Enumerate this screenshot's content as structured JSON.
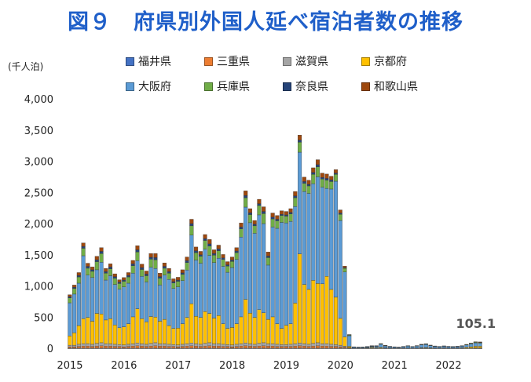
{
  "title": "図９　府県別外国人延べ宿泊者数の推移",
  "chart_data": {
    "type": "bar",
    "stacked": true,
    "unit_label": "(千人泊)",
    "ylim": [
      0,
      4000
    ],
    "yticks": [
      "0",
      "500",
      "1,000",
      "1,500",
      "2,000",
      "2,500",
      "3,000",
      "3,500",
      "4,000"
    ],
    "xticks": [
      "2015",
      "2016",
      "2017",
      "2018",
      "2019",
      "2020",
      "2021",
      "2022"
    ],
    "annotation": "105.1",
    "legend": [
      {
        "name": "福井県",
        "color": "#4472c4"
      },
      {
        "name": "三重県",
        "color": "#ed7d31"
      },
      {
        "name": "滋賀県",
        "color": "#a5a5a5"
      },
      {
        "name": "京都府",
        "color": "#ffc000"
      },
      {
        "name": "大阪府",
        "color": "#5b9bd5"
      },
      {
        "name": "兵庫県",
        "color": "#70ad47"
      },
      {
        "name": "奈良県",
        "color": "#264478"
      },
      {
        "name": "和歌山県",
        "color": "#9e480e"
      }
    ],
    "categories": [
      "2015-01",
      "2015-02",
      "2015-03",
      "2015-04",
      "2015-05",
      "2015-06",
      "2015-07",
      "2015-08",
      "2015-09",
      "2015-10",
      "2015-11",
      "2015-12",
      "2016-01",
      "2016-02",
      "2016-03",
      "2016-04",
      "2016-05",
      "2016-06",
      "2016-07",
      "2016-08",
      "2016-09",
      "2016-10",
      "2016-11",
      "2016-12",
      "2017-01",
      "2017-02",
      "2017-03",
      "2017-04",
      "2017-05",
      "2017-06",
      "2017-07",
      "2017-08",
      "2017-09",
      "2017-10",
      "2017-11",
      "2017-12",
      "2018-01",
      "2018-02",
      "2018-03",
      "2018-04",
      "2018-05",
      "2018-06",
      "2018-07",
      "2018-08",
      "2018-09",
      "2018-10",
      "2018-11",
      "2018-12",
      "2019-01",
      "2019-02",
      "2019-03",
      "2019-04",
      "2019-05",
      "2019-06",
      "2019-07",
      "2019-08",
      "2019-09",
      "2019-10",
      "2019-11",
      "2019-12",
      "2020-01",
      "2020-02",
      "2020-03",
      "2020-04",
      "2020-05",
      "2020-06",
      "2020-07",
      "2020-08",
      "2020-09",
      "2020-10",
      "2020-11",
      "2020-12",
      "2021-01",
      "2021-02",
      "2021-03",
      "2021-04",
      "2021-05",
      "2021-06",
      "2021-07",
      "2021-08",
      "2021-09",
      "2021-10",
      "2021-11",
      "2021-12",
      "2022-01",
      "2022-02",
      "2022-03",
      "2022-04",
      "2022-05",
      "2022-06",
      "2022-07",
      "2022-08"
    ],
    "series": [
      {
        "name": "福井県",
        "values": [
          4,
          4,
          4,
          4,
          4,
          4,
          4,
          4,
          4,
          4,
          4,
          4,
          4,
          4,
          4,
          4,
          4,
          4,
          4,
          4,
          4,
          4,
          4,
          4,
          4,
          4,
          4,
          4,
          4,
          4,
          4,
          4,
          4,
          4,
          4,
          4,
          4,
          4,
          4,
          4,
          4,
          4,
          4,
          4,
          4,
          4,
          4,
          4,
          4,
          4,
          4,
          4,
          4,
          4,
          4,
          4,
          4,
          4,
          4,
          4,
          4,
          3,
          1,
          0,
          0,
          0,
          0,
          0,
          0,
          0,
          0,
          0,
          0,
          0,
          0,
          0,
          0,
          0,
          0,
          0,
          0,
          0,
          0,
          0,
          0,
          0,
          0,
          0,
          0,
          0,
          1,
          1
        ]
      },
      {
        "name": "三重県",
        "values": [
          20,
          20,
          25,
          30,
          30,
          25,
          30,
          35,
          30,
          30,
          25,
          25,
          20,
          25,
          30,
          35,
          30,
          25,
          30,
          35,
          30,
          30,
          25,
          25,
          20,
          25,
          30,
          35,
          30,
          25,
          30,
          35,
          30,
          30,
          25,
          25,
          20,
          25,
          30,
          35,
          30,
          25,
          30,
          35,
          30,
          30,
          25,
          25,
          25,
          25,
          30,
          35,
          30,
          25,
          30,
          35,
          30,
          30,
          25,
          25,
          20,
          15,
          5,
          1,
          1,
          1,
          2,
          3,
          2,
          2,
          1,
          1,
          1,
          1,
          1,
          1,
          1,
          1,
          1,
          1,
          1,
          1,
          1,
          1,
          1,
          1,
          1,
          1,
          1,
          2,
          3,
          3
        ]
      },
      {
        "name": "滋賀県",
        "values": [
          25,
          25,
          35,
          40,
          40,
          35,
          45,
          50,
          40,
          40,
          35,
          30,
          30,
          35,
          40,
          45,
          40,
          35,
          45,
          50,
          40,
          40,
          35,
          30,
          30,
          35,
          40,
          45,
          40,
          35,
          45,
          50,
          40,
          40,
          35,
          30,
          30,
          35,
          40,
          45,
          40,
          35,
          45,
          50,
          40,
          40,
          35,
          30,
          30,
          35,
          40,
          45,
          40,
          35,
          45,
          50,
          40,
          40,
          35,
          30,
          25,
          15,
          5,
          1,
          1,
          1,
          2,
          3,
          2,
          2,
          1,
          1,
          1,
          1,
          1,
          1,
          1,
          1,
          1,
          1,
          1,
          1,
          1,
          1,
          1,
          1,
          1,
          1,
          1,
          2,
          3,
          3
        ]
      },
      {
        "name": "京都府",
        "values": [
          150,
          200,
          300,
          400,
          420,
          370,
          480,
          460,
          380,
          400,
          310,
          270,
          290,
          330,
          430,
          550,
          400,
          360,
          430,
          410,
          360,
          390,
          300,
          260,
          270,
          330,
          420,
          630,
          440,
          430,
          510,
          470,
          410,
          450,
          330,
          260,
          280,
          330,
          430,
          700,
          490,
          430,
          540,
          480,
          390,
          430,
          330,
          260,
          310,
          330,
          650,
          1430,
          950,
          880,
          1010,
          950,
          960,
          1080,
          880,
          760,
          430,
          150,
          20,
          2,
          2,
          3,
          5,
          10,
          8,
          10,
          5,
          3,
          2,
          2,
          3,
          3,
          2,
          4,
          8,
          10,
          6,
          4,
          3,
          5,
          4,
          3,
          4,
          6,
          15,
          20,
          25,
          25
        ]
      },
      {
        "name": "大阪府",
        "values": [
          530,
          620,
          680,
          1010,
          680,
          700,
          700,
          830,
          640,
          690,
          650,
          620,
          640,
          650,
          700,
          770,
          680,
          640,
          790,
          780,
          580,
          710,
          740,
          640,
          660,
          690,
          760,
          1100,
          900,
          870,
          1000,
          930,
          890,
          920,
          920,
          900,
          960,
          1030,
          1280,
          1480,
          1450,
          1350,
          1520,
          1430,
          870,
          1440,
          1530,
          1700,
          1640,
          1640,
          1550,
          1630,
          1490,
          1540,
          1550,
          1710,
          1550,
          1410,
          1610,
          1860,
          1570,
          1040,
          170,
          15,
          10,
          10,
          12,
          15,
          20,
          50,
          30,
          20,
          15,
          10,
          20,
          30,
          20,
          30,
          45,
          50,
          35,
          25,
          20,
          25,
          20,
          18,
          20,
          25,
          35,
          45,
          55,
          50
        ]
      },
      {
        "name": "兵庫県",
        "values": [
          80,
          90,
          100,
          120,
          110,
          100,
          130,
          140,
          110,
          110,
          100,
          90,
          90,
          100,
          120,
          140,
          110,
          100,
          130,
          140,
          110,
          110,
          100,
          90,
          90,
          100,
          120,
          150,
          120,
          110,
          140,
          150,
          120,
          120,
          110,
          100,
          100,
          110,
          130,
          150,
          130,
          120,
          150,
          160,
          120,
          130,
          120,
          110,
          110,
          120,
          140,
          160,
          130,
          120,
          150,
          160,
          130,
          130,
          120,
          110,
          100,
          60,
          12,
          3,
          3,
          3,
          4,
          5,
          5,
          8,
          6,
          4,
          3,
          3,
          3,
          4,
          3,
          4,
          6,
          7,
          5,
          4,
          3,
          4,
          3,
          3,
          4,
          5,
          7,
          9,
          10,
          10
        ]
      },
      {
        "name": "奈良県",
        "values": [
          20,
          20,
          25,
          30,
          30,
          25,
          30,
          35,
          25,
          30,
          25,
          20,
          20,
          25,
          30,
          35,
          30,
          25,
          30,
          35,
          25,
          30,
          25,
          20,
          20,
          25,
          30,
          35,
          30,
          25,
          30,
          35,
          25,
          30,
          25,
          20,
          20,
          25,
          30,
          35,
          30,
          25,
          30,
          35,
          25,
          30,
          25,
          20,
          20,
          25,
          30,
          35,
          30,
          25,
          30,
          35,
          25,
          30,
          25,
          20,
          20,
          10,
          2,
          1,
          1,
          1,
          1,
          1,
          1,
          1,
          1,
          1,
          1,
          1,
          1,
          1,
          1,
          1,
          1,
          1,
          1,
          1,
          1,
          1,
          1,
          1,
          1,
          1,
          1,
          1,
          2,
          2
        ]
      },
      {
        "name": "和歌山県",
        "values": [
          30,
          35,
          45,
          55,
          50,
          45,
          55,
          60,
          50,
          50,
          45,
          40,
          40,
          45,
          55,
          65,
          55,
          50,
          60,
          65,
          55,
          55,
          50,
          45,
          45,
          50,
          60,
          70,
          60,
          55,
          65,
          70,
          60,
          60,
          55,
          50,
          50,
          55,
          65,
          75,
          65,
          60,
          70,
          75,
          65,
          65,
          60,
          55,
          55,
          60,
          70,
          80,
          70,
          65,
          75,
          80,
          70,
          70,
          60,
          55,
          50,
          25,
          5,
          1,
          1,
          1,
          2,
          3,
          2,
          3,
          2,
          1,
          1,
          1,
          1,
          1,
          1,
          2,
          2,
          2,
          2,
          1,
          1,
          1,
          1,
          1,
          1,
          2,
          3,
          4,
          6,
          8
        ]
      }
    ]
  }
}
